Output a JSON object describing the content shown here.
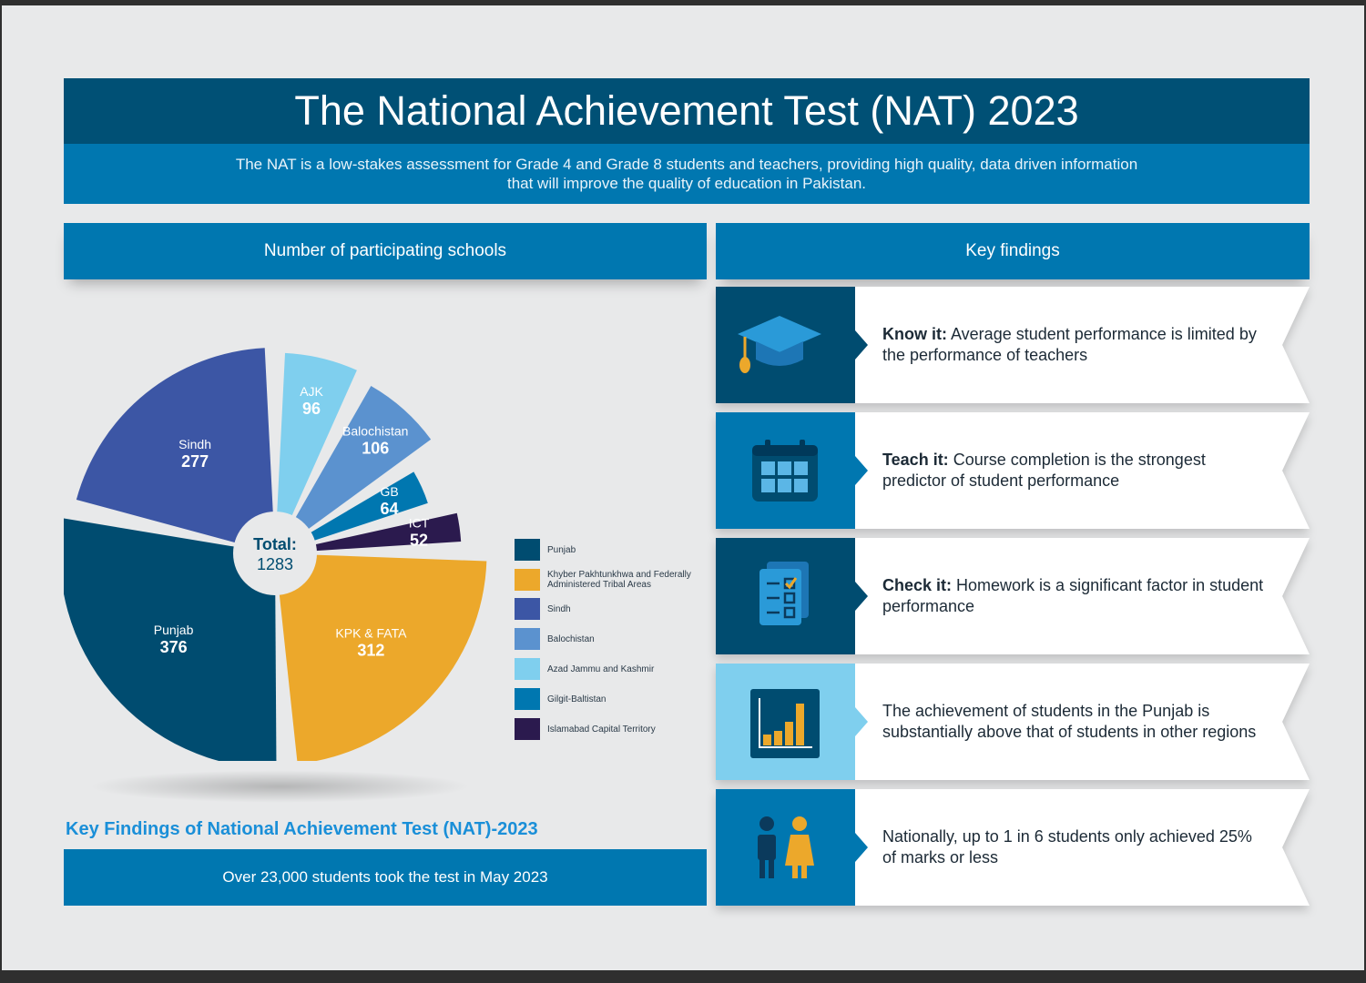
{
  "header": {
    "title": "The National Achievement Test (NAT) 2023",
    "subtitle": "The NAT is a low-stakes assessment for Grade 4 and Grade 8 students and teachers, providing high quality, data driven information that will improve the quality of education in Pakistan."
  },
  "schools_section": {
    "header": "Number of participating schools"
  },
  "findings_section": {
    "header": "Key findings"
  },
  "footer": {
    "title": "Key Findings of National Achievement Test (NAT)-2023",
    "students": "Over 23,000 students took the test in May 2023"
  },
  "chart_data": {
    "type": "pie",
    "title": "Number of participating schools",
    "total_label": "Total:",
    "total": 1283,
    "slices": [
      {
        "label": "AJK",
        "value": 96,
        "legend": "Azad Jammu and Kashmir",
        "color": "#7fcfee"
      },
      {
        "label": "Balochistan",
        "value": 106,
        "legend": "Balochistan",
        "color": "#5b92cf"
      },
      {
        "label": "GB",
        "value": 64,
        "legend": "Gilgit-Baltistan",
        "color": "#0077b0"
      },
      {
        "label": "ICT",
        "value": 52,
        "legend": "Islamabad Capital Territory",
        "color": "#2b1a4e"
      },
      {
        "label": "KPK & FATA",
        "value": 312,
        "legend": "Khyber Pakhtunkhwa and Federally Administered Tribal Areas",
        "color": "#eca82b"
      },
      {
        "label": "Punjab",
        "value": 376,
        "legend": "Punjab",
        "color": "#004c70"
      },
      {
        "label": "Sindh",
        "value": 277,
        "legend": "Sindh",
        "color": "#3c56a5"
      }
    ],
    "legend_order": [
      "Punjab",
      "Khyber Pakhtunkhwa and Federally Administered Tribal Areas",
      "Sindh",
      "Balochistan",
      "Azad Jammu and Kashmir",
      "Gilgit-Baltistan",
      "Islamabad Capital Territory"
    ],
    "legend_placement": "right"
  },
  "findings": [
    {
      "bold": "Know it:",
      "text": " Average student performance is limited by the performance of teachers",
      "icon": "graduation-cap-icon",
      "color": "#004c70"
    },
    {
      "bold": "Teach it:",
      "text": " Course completion is the strongest predictor of student performance",
      "icon": "calendar-icon",
      "color": "#0077b0"
    },
    {
      "bold": "Check it:",
      "text": " Homework is a significant factor in student performance",
      "icon": "checklist-icon",
      "color": "#004c70"
    },
    {
      "bold": "",
      "text": "The achievement of students in the Punjab is substantially above that of students in other regions",
      "icon": "bar-chart-icon",
      "color": "#7fcfee"
    },
    {
      "bold": "",
      "text": "Nationally, up to 1 in 6 students only achieved 25% of marks or less",
      "icon": "students-icon",
      "color": "#0077b0"
    }
  ]
}
